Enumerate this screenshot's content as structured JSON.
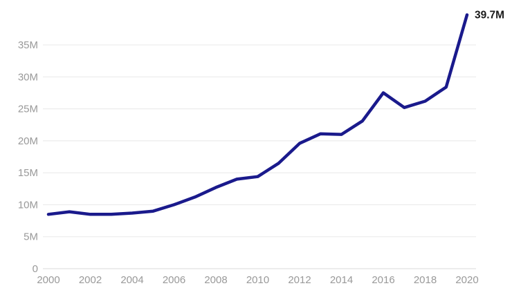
{
  "chart_data": {
    "type": "line",
    "title": "",
    "x": [
      2000,
      2001,
      2002,
      2003,
      2004,
      2005,
      2006,
      2007,
      2008,
      2009,
      2010,
      2011,
      2012,
      2013,
      2014,
      2015,
      2016,
      2017,
      2018,
      2019,
      2020
    ],
    "values": [
      8.5,
      8.9,
      8.5,
      8.5,
      8.7,
      9.0,
      10.0,
      11.2,
      12.7,
      14.0,
      14.4,
      16.5,
      19.6,
      21.1,
      21.0,
      23.1,
      27.5,
      25.2,
      26.2,
      28.4,
      39.7
    ],
    "unit": "millions",
    "end_label": "39.7M",
    "x_tick_labels": [
      "2000",
      "2002",
      "2004",
      "2006",
      "2008",
      "2010",
      "2012",
      "2014",
      "2016",
      "2018",
      "2020"
    ],
    "x_tick_values": [
      2000,
      2002,
      2004,
      2006,
      2008,
      2010,
      2012,
      2014,
      2016,
      2018,
      2020
    ],
    "y_tick_labels": [
      "0",
      "5M",
      "10M",
      "15M",
      "20M",
      "25M",
      "30M",
      "35M"
    ],
    "y_tick_values": [
      0,
      5,
      10,
      15,
      20,
      25,
      30,
      35
    ],
    "xlim": [
      2000,
      2020
    ],
    "ylim": [
      0,
      40
    ],
    "grid": "horizontal-only",
    "legend": "none",
    "xlabel": "",
    "ylabel": "",
    "colors": {
      "line": "#1a1a8c",
      "grid": "#e8e8e8",
      "zero_axis": "#d9d9d9",
      "tick_text": "#999999",
      "end_label_text": "#1a1a1a",
      "background": "#ffffff"
    }
  }
}
